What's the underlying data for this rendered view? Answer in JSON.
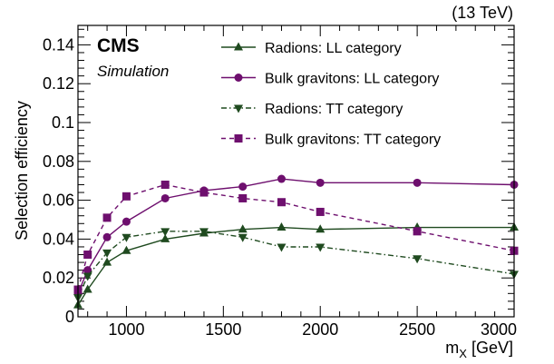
{
  "chart_data": {
    "type": "line",
    "energy_label": "(13 TeV)",
    "experiment_label": "CMS",
    "experiment_sublabel": "Simulation",
    "xlabel": "m",
    "xlabel_sub": "X",
    "xlabel_unit": " [GeV]",
    "ylabel": "Selection efficiency",
    "xlim": [
      750,
      3000
    ],
    "ylim": [
      0,
      0.15
    ],
    "x_ticks": [
      1000,
      1500,
      2000,
      2500,
      3000
    ],
    "y_ticks": [
      0,
      0.02,
      0.04,
      0.06,
      0.08,
      0.1,
      0.12,
      0.14
    ],
    "y_tick_labels": [
      "0",
      "0.02",
      "0.04",
      "0.06",
      "0.08",
      "0.1",
      "0.12",
      "0.14"
    ],
    "grid": false,
    "legend_position": "top-right",
    "series": [
      {
        "name": "Radions: LL category",
        "color": "#1f4a1f",
        "marker": "triangle-up",
        "line": "solid",
        "x": [
          750,
          800,
          900,
          1000,
          1200,
          1400,
          1600,
          1800,
          2000,
          2500,
          3000
        ],
        "y": [
          0.006,
          0.014,
          0.028,
          0.034,
          0.04,
          0.043,
          0.045,
          0.046,
          0.045,
          0.046,
          0.046
        ]
      },
      {
        "name": "Bulk gravitons: LL category",
        "color": "#6e0f6e",
        "marker": "circle",
        "line": "solid",
        "x": [
          750,
          800,
          900,
          1000,
          1200,
          1400,
          1600,
          1800,
          2000,
          2500,
          3000
        ],
        "y": [
          0.012,
          0.024,
          0.041,
          0.049,
          0.061,
          0.065,
          0.067,
          0.071,
          0.069,
          0.069,
          0.068
        ]
      },
      {
        "name": "Radions: TT category",
        "color": "#1f4a1f",
        "marker": "triangle-down",
        "line": "dashdot",
        "x": [
          750,
          800,
          900,
          1000,
          1200,
          1400,
          1600,
          1800,
          2000,
          2500,
          3000
        ],
        "y": [
          0.01,
          0.021,
          0.033,
          0.041,
          0.044,
          0.044,
          0.041,
          0.036,
          0.036,
          0.03,
          0.022
        ]
      },
      {
        "name": "Bulk gravitons: TT category",
        "color": "#6e0f6e",
        "marker": "square",
        "line": "dashed",
        "x": [
          750,
          800,
          900,
          1000,
          1200,
          1400,
          1600,
          1800,
          2000,
          2500,
          3000
        ],
        "y": [
          0.014,
          0.032,
          0.051,
          0.062,
          0.068,
          0.064,
          0.061,
          0.059,
          0.054,
          0.044,
          0.034
        ]
      }
    ]
  }
}
